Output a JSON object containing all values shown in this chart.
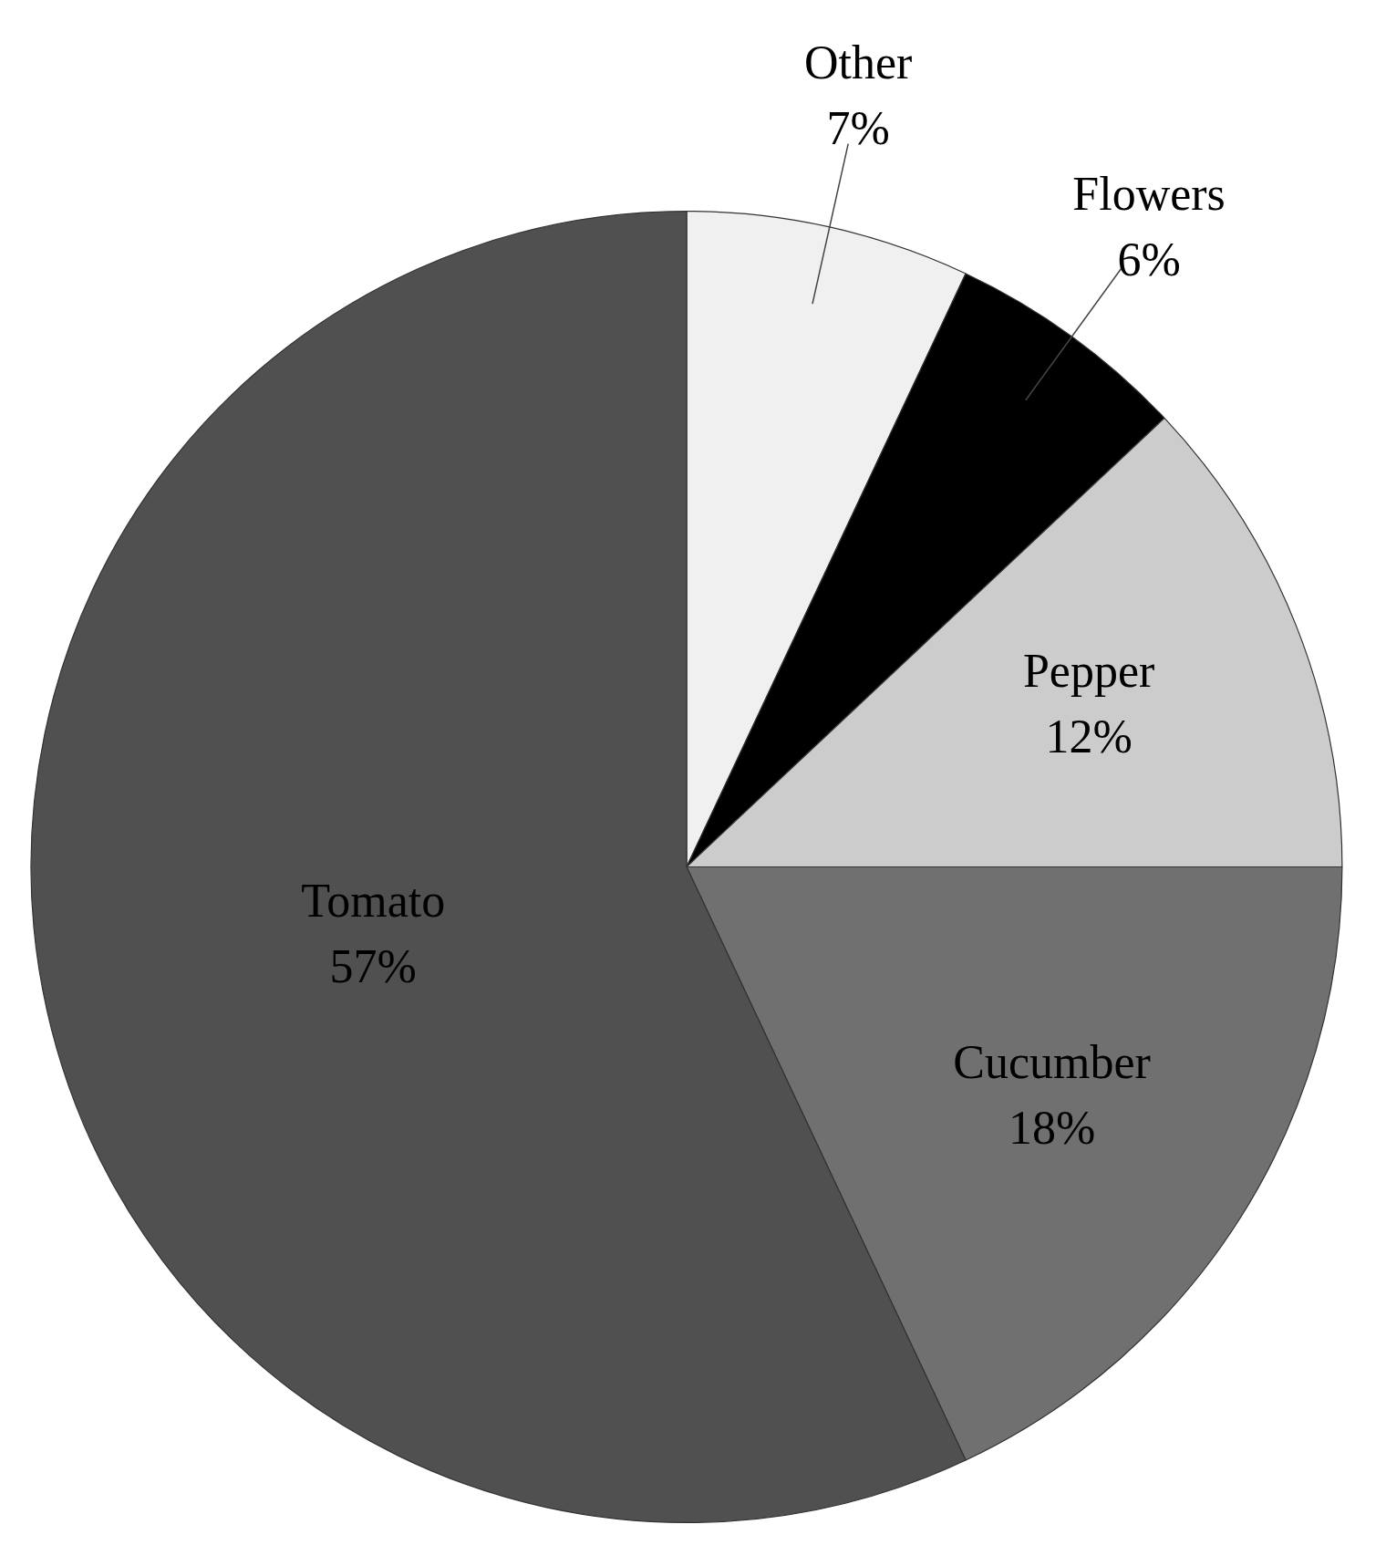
{
  "chart_data": {
    "type": "pie",
    "categories": [
      "Other",
      "Flowers",
      "Pepper",
      "Cucumber",
      "Tomato"
    ],
    "values": [
      7,
      6,
      12,
      18,
      57
    ],
    "colors": [
      "#f0f0f0",
      "#000000",
      "#cccccc",
      "#707070",
      "#505050"
    ],
    "value_labels": [
      "7%",
      "6%",
      "12%",
      "18%",
      "57%"
    ],
    "legend": false
  }
}
